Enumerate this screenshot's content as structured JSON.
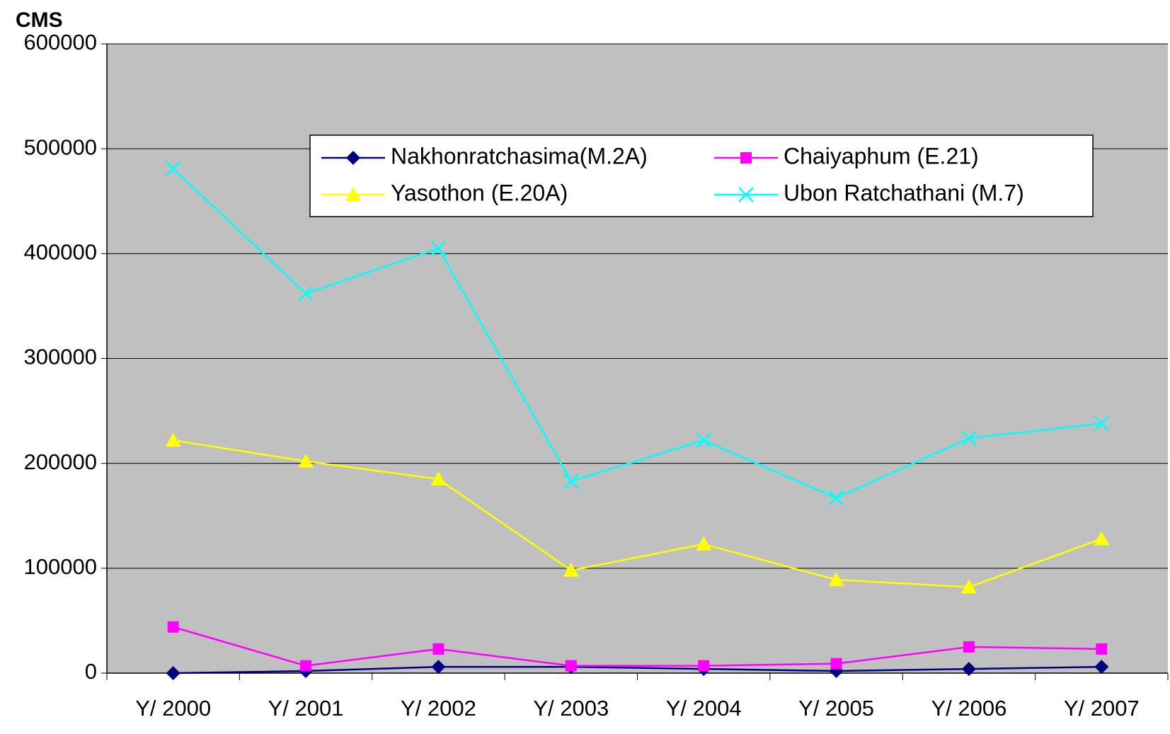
{
  "chart_data": {
    "type": "line",
    "title": "CMS",
    "categories": [
      "Y/ 2000",
      "Y/ 2001",
      "Y/ 2002",
      "Y/ 2003",
      "Y/ 2004",
      "Y/ 2005",
      "Y/ 2006",
      "Y/ 2007"
    ],
    "series": [
      {
        "name": "Nakhonratchasima(M.2A)",
        "color": "#000080",
        "marker": "diamond",
        "values": [
          0,
          2000,
          6000,
          6000,
          4000,
          2000,
          4000,
          6000
        ]
      },
      {
        "name": "Chaiyaphum (E.21)",
        "color": "#ff00ff",
        "marker": "square",
        "values": [
          44000,
          7000,
          23000,
          7000,
          7000,
          9000,
          25000,
          23000
        ]
      },
      {
        "name": "Yasothon (E.20A)",
        "color": "#ffff00",
        "marker": "triangle",
        "values": [
          222000,
          202000,
          185000,
          98000,
          123000,
          89000,
          82000,
          128000
        ]
      },
      {
        "name": "Ubon Ratchathani (M.7)",
        "color": "#00ffff",
        "marker": "x",
        "values": [
          481000,
          362000,
          405000,
          183000,
          222000,
          167000,
          224000,
          238000
        ]
      }
    ],
    "ylim": [
      0,
      600000
    ],
    "yticks": [
      0,
      100000,
      200000,
      300000,
      400000,
      500000,
      600000
    ],
    "grid": true
  }
}
